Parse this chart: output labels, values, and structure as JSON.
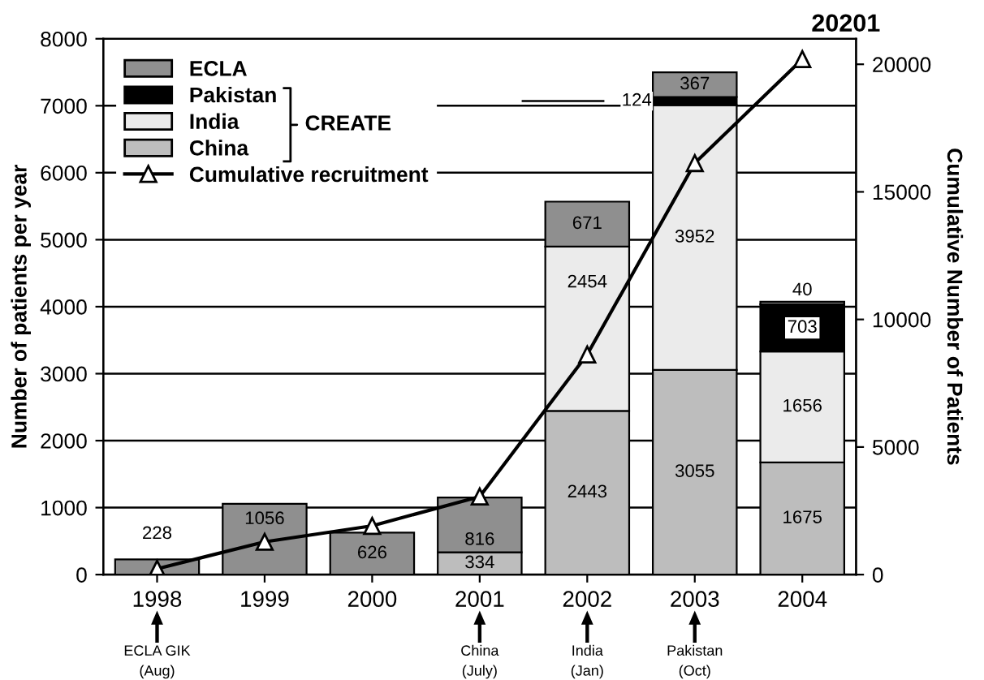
{
  "chart_data": {
    "type": "bar",
    "stacked": true,
    "categories": [
      "1998",
      "1999",
      "2000",
      "2001",
      "2002",
      "2003",
      "2004"
    ],
    "ylabel": "Number of patients per year",
    "y2label": "Cumulative Number of Patients",
    "ylim": [
      0,
      8000
    ],
    "yticks": [
      0,
      1000,
      2000,
      3000,
      4000,
      5000,
      6000,
      7000,
      8000
    ],
    "y2lim": [
      0,
      21000
    ],
    "y2ticks": [
      0,
      5000,
      10000,
      15000,
      20000
    ],
    "grid": "y",
    "legend": "top left",
    "data_labels": true,
    "series": [
      {
        "name": "China",
        "color": "#bdbdbd",
        "values": [
          null,
          null,
          null,
          334,
          2443,
          3055,
          1675
        ]
      },
      {
        "name": "India",
        "color": "#ebebeb",
        "values": [
          null,
          null,
          null,
          null,
          2454,
          3952,
          1656
        ]
      },
      {
        "name": "Pakistan",
        "color": "#000000",
        "values": [
          null,
          null,
          null,
          null,
          null,
          124,
          703
        ]
      },
      {
        "name": "ECLA",
        "color": "#8f8f8f",
        "values": [
          228,
          1056,
          626,
          816,
          671,
          367,
          40
        ]
      },
      {
        "name": "Cumulative recruitment",
        "type": "line",
        "axis": "y2",
        "color": "#000000",
        "marker": "triangle",
        "values": [
          228,
          1284,
          1910,
          3060,
          8628,
          16126,
          20201
        ],
        "value_labels": [
          null,
          null,
          null,
          null,
          null,
          null,
          "20201"
        ]
      }
    ],
    "annotations": [
      "CREATE",
      "ECLA GIK\n(Aug)",
      "China\n(July)",
      "India\n(Jan)",
      "Pakistan\n(Oct)"
    ]
  }
}
